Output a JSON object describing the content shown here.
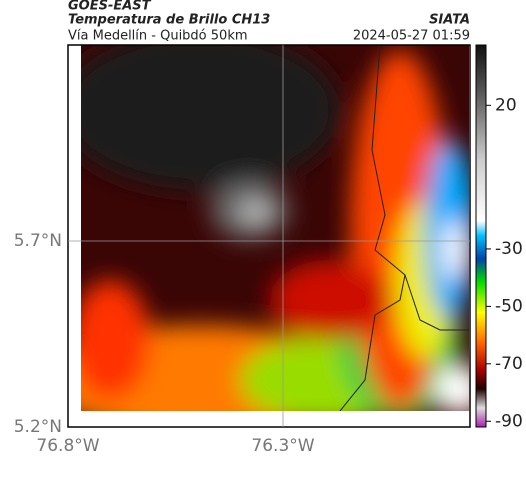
{
  "header": {
    "satellite": "GOES-EAST",
    "product": "Temperatura de Brillo CH13",
    "region": "Vía Medellín - Quibdó 50km",
    "source": "SIATA",
    "timestamp": "2024-05-27 01:59"
  },
  "axes": {
    "lat_labels": [
      "5.7°N",
      "5.2°N"
    ],
    "lon_labels": [
      "76.8°W",
      "76.3°W"
    ]
  },
  "colorbar": {
    "lim": [
      -92,
      41
    ],
    "ticks": [
      20,
      -30,
      -50,
      -70,
      -90
    ]
  }
}
